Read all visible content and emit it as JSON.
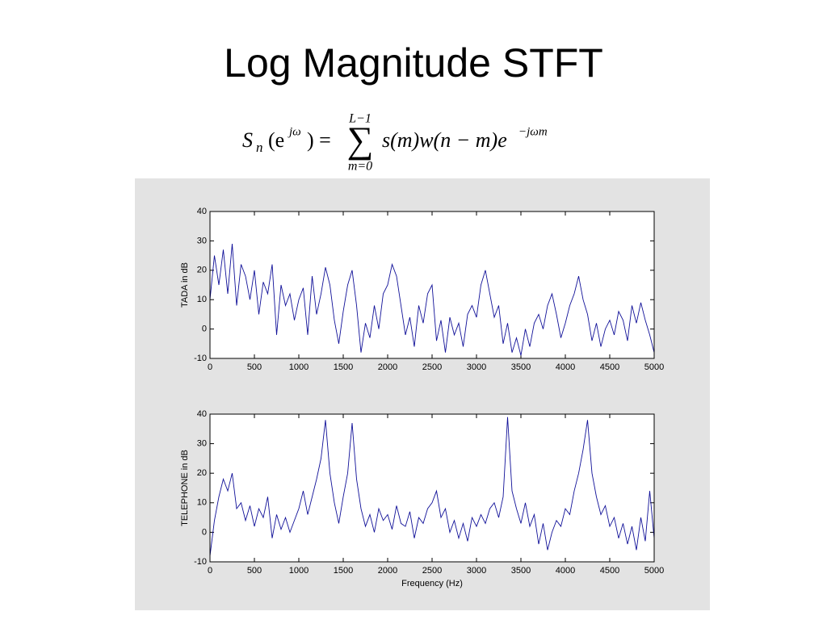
{
  "title": "Log Magnitude STFT",
  "formula": {
    "lhs_symbol": "S",
    "lhs_sub": "n",
    "lhs_arg": "(e",
    "lhs_sup": "jω",
    "equals": ") =",
    "sum_upper": "L−1",
    "sum_sign": "∑",
    "sum_lower": "m=0",
    "rhs": "s(m)w(n − m)e",
    "rhs_sup": "−jωm"
  },
  "chart_data": [
    {
      "type": "line",
      "ylabel": "TADA in dB",
      "xlim": [
        0,
        5000
      ],
      "ylim": [
        -10,
        40
      ],
      "xticks": [
        0,
        500,
        1000,
        1500,
        2000,
        2500,
        3000,
        3500,
        4000,
        4500,
        5000
      ],
      "yticks": [
        -10,
        0,
        10,
        20,
        30,
        40
      ],
      "grid": false,
      "x": [
        0,
        50,
        100,
        150,
        200,
        250,
        300,
        350,
        400,
        450,
        500,
        550,
        600,
        650,
        700,
        750,
        800,
        850,
        900,
        950,
        1000,
        1050,
        1100,
        1150,
        1200,
        1250,
        1300,
        1350,
        1400,
        1450,
        1500,
        1550,
        1600,
        1650,
        1700,
        1750,
        1800,
        1850,
        1900,
        1950,
        2000,
        2050,
        2100,
        2150,
        2200,
        2250,
        2300,
        2350,
        2400,
        2450,
        2500,
        2550,
        2600,
        2650,
        2700,
        2750,
        2800,
        2850,
        2900,
        2950,
        3000,
        3050,
        3100,
        3150,
        3200,
        3250,
        3300,
        3350,
        3400,
        3450,
        3500,
        3550,
        3600,
        3650,
        3700,
        3750,
        3800,
        3850,
        3900,
        3950,
        4000,
        4050,
        4100,
        4150,
        4200,
        4250,
        4300,
        4350,
        4400,
        4450,
        4500,
        4550,
        4600,
        4650,
        4700,
        4750,
        4800,
        4850,
        4900,
        4950,
        5000
      ],
      "series": [
        {
          "color": "#101098",
          "values": [
            10,
            25,
            15,
            27,
            12,
            29,
            8,
            22,
            18,
            10,
            20,
            5,
            16,
            12,
            22,
            -2,
            15,
            8,
            12,
            3,
            10,
            14,
            -2,
            18,
            5,
            12,
            21,
            15,
            3,
            -5,
            6,
            15,
            20,
            8,
            -8,
            2,
            -3,
            8,
            0,
            12,
            15,
            22,
            18,
            8,
            -2,
            4,
            -6,
            8,
            2,
            12,
            15,
            -4,
            3,
            -8,
            4,
            -2,
            2,
            -6,
            5,
            8,
            4,
            15,
            20,
            12,
            4,
            8,
            -5,
            2,
            -8,
            -3,
            -9,
            0,
            -6,
            2,
            5,
            0,
            8,
            12,
            5,
            -3,
            2,
            8,
            12,
            18,
            10,
            5,
            -4,
            2,
            -6,
            0,
            3,
            -2,
            6,
            3,
            -4,
            8,
            2,
            9,
            3,
            -2,
            -8
          ]
        }
      ]
    },
    {
      "type": "line",
      "ylabel": "TELEPHONE in dB",
      "xlabel": "Frequency (Hz)",
      "xlim": [
        0,
        5000
      ],
      "ylim": [
        -10,
        40
      ],
      "xticks": [
        0,
        500,
        1000,
        1500,
        2000,
        2500,
        3000,
        3500,
        4000,
        4500,
        5000
      ],
      "yticks": [
        -10,
        0,
        10,
        20,
        30,
        40
      ],
      "grid": false,
      "x": [
        0,
        50,
        100,
        150,
        200,
        250,
        300,
        350,
        400,
        450,
        500,
        550,
        600,
        650,
        700,
        750,
        800,
        850,
        900,
        950,
        1000,
        1050,
        1100,
        1150,
        1200,
        1250,
        1300,
        1350,
        1400,
        1450,
        1500,
        1550,
        1600,
        1650,
        1700,
        1750,
        1800,
        1850,
        1900,
        1950,
        2000,
        2050,
        2100,
        2150,
        2200,
        2250,
        2300,
        2350,
        2400,
        2450,
        2500,
        2550,
        2600,
        2650,
        2700,
        2750,
        2800,
        2850,
        2900,
        2950,
        3000,
        3050,
        3100,
        3150,
        3200,
        3250,
        3300,
        3350,
        3400,
        3450,
        3500,
        3550,
        3600,
        3650,
        3700,
        3750,
        3800,
        3850,
        3900,
        3950,
        4000,
        4050,
        4100,
        4150,
        4200,
        4250,
        4300,
        4350,
        4400,
        4450,
        4500,
        4550,
        4600,
        4650,
        4700,
        4750,
        4800,
        4850,
        4900,
        4950,
        5000
      ],
      "series": [
        {
          "color": "#101098",
          "values": [
            -8,
            4,
            12,
            18,
            14,
            20,
            8,
            10,
            4,
            9,
            2,
            8,
            5,
            12,
            -2,
            6,
            1,
            5,
            0,
            4,
            8,
            14,
            6,
            12,
            18,
            25,
            38,
            20,
            10,
            3,
            12,
            20,
            37,
            18,
            8,
            2,
            6,
            0,
            8,
            4,
            6,
            1,
            9,
            3,
            2,
            7,
            -2,
            5,
            3,
            8,
            10,
            14,
            5,
            8,
            0,
            4,
            -2,
            3,
            -3,
            5,
            2,
            6,
            3,
            8,
            10,
            5,
            12,
            39,
            14,
            8,
            3,
            10,
            2,
            6,
            -4,
            3,
            -6,
            0,
            4,
            2,
            8,
            6,
            14,
            20,
            28,
            38,
            20,
            12,
            6,
            9,
            2,
            5,
            -2,
            3,
            -4,
            2,
            -6,
            5,
            -3,
            14,
            -2
          ]
        }
      ]
    }
  ]
}
